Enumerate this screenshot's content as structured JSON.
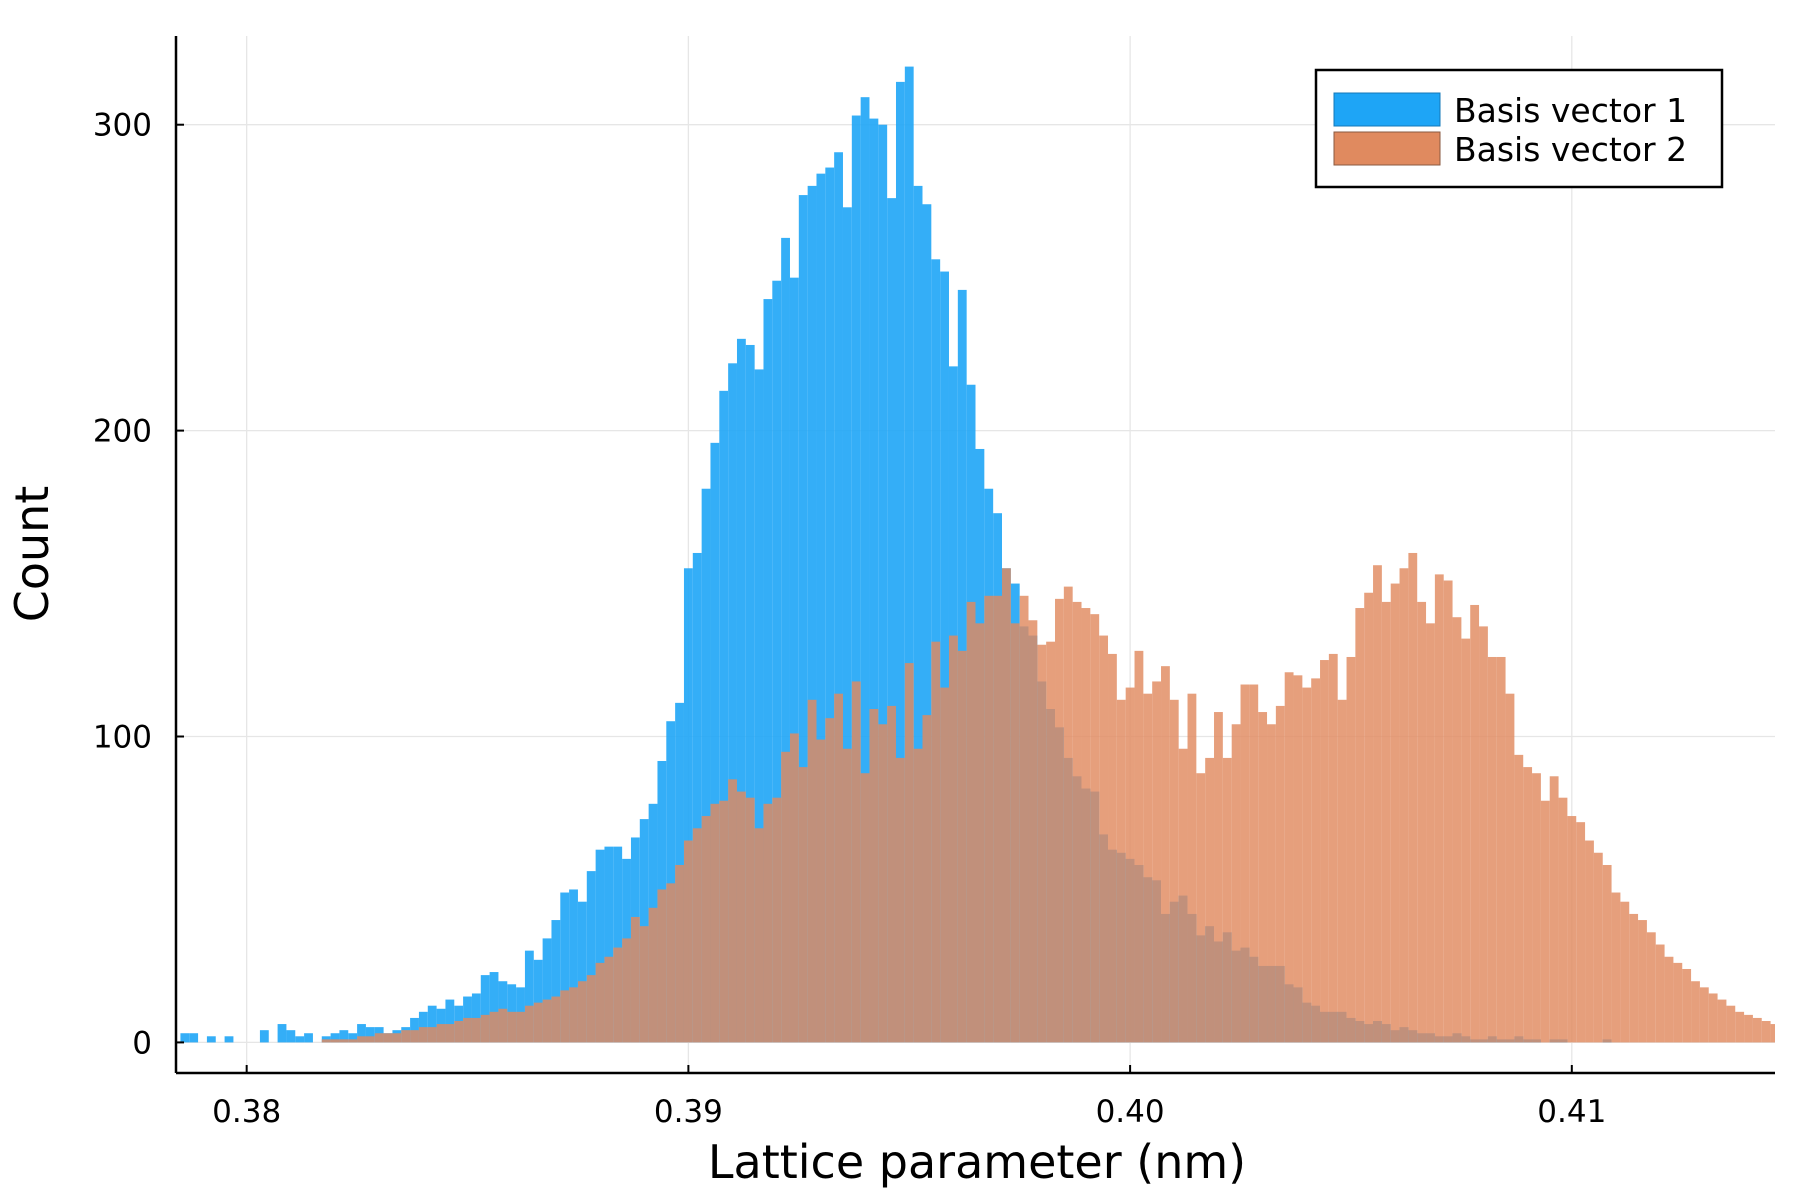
{
  "chart_data": {
    "type": "histogram",
    "title": "",
    "xlabel": "Lattice parameter (nm)",
    "ylabel": "Count",
    "xlim": [
      0.3784,
      0.4146
    ],
    "ylim": [
      -10,
      329
    ],
    "x_ticks": [
      {
        "value": 0.38,
        "label": "0.38"
      },
      {
        "value": 0.39,
        "label": "0.39"
      },
      {
        "value": 0.4,
        "label": "0.40"
      },
      {
        "value": 0.41,
        "label": "0.41"
      }
    ],
    "y_ticks": [
      {
        "value": 0,
        "label": "0"
      },
      {
        "value": 100,
        "label": "100"
      },
      {
        "value": 200,
        "label": "200"
      },
      {
        "value": 300,
        "label": "300"
      }
    ],
    "grid": true,
    "legend_position": "top-right",
    "bin_width": 0.0002,
    "series": [
      {
        "name": "Basis vector 1",
        "color": "#1ea5f6",
        "x_start": 0.3785,
        "counts": [
          3,
          3,
          0,
          2,
          0,
          2,
          0,
          0,
          0,
          4,
          0,
          6,
          4,
          2,
          3,
          0,
          2,
          3,
          4,
          3,
          6,
          5,
          5,
          3,
          4,
          5,
          8,
          10,
          12,
          11,
          14,
          12,
          15,
          16,
          22,
          23,
          20,
          19,
          18,
          30,
          27,
          34,
          40,
          49,
          50,
          46,
          56,
          63,
          64,
          64,
          60,
          67,
          73,
          78,
          92,
          105,
          111,
          155,
          160,
          181,
          196,
          213,
          222,
          230,
          228,
          220,
          243,
          249,
          263,
          250,
          277,
          280,
          284,
          286,
          291,
          273,
          303,
          309,
          302,
          300,
          276,
          314,
          319,
          280,
          274,
          256,
          252,
          221,
          246,
          215,
          194,
          181,
          173,
          155,
          150,
          136,
          133,
          118,
          109,
          103,
          93,
          87,
          83,
          82,
          68,
          63,
          62,
          60,
          58,
          54,
          53,
          42,
          46,
          48,
          42,
          35,
          38,
          33,
          36,
          30,
          31,
          28,
          25,
          25,
          25,
          19,
          18,
          13,
          12,
          10,
          10,
          10,
          8,
          7,
          6,
          7,
          6,
          4,
          5,
          4,
          3,
          3,
          2,
          2,
          3,
          2,
          1,
          1,
          2,
          1,
          1,
          2,
          1,
          1,
          0,
          1,
          1,
          0,
          0,
          0,
          0,
          1,
          0,
          0,
          0,
          0,
          0,
          0,
          0,
          0,
          0,
          0,
          0,
          0,
          0,
          0,
          0,
          0,
          0,
          0,
          0,
          0
        ]
      },
      {
        "name": "Basis vector 2",
        "color": "#e08a5f",
        "x_start": 0.3785,
        "counts": [
          0,
          0,
          0,
          0,
          0,
          0,
          0,
          0,
          0,
          0,
          0,
          0,
          0,
          0,
          0,
          0,
          1,
          1,
          1,
          1,
          2,
          2,
          3,
          3,
          3,
          4,
          4,
          5,
          5,
          6,
          6,
          7,
          8,
          8,
          9,
          10,
          11,
          10,
          10,
          12,
          13,
          14,
          15,
          17,
          18,
          20,
          22,
          26,
          28,
          31,
          34,
          41,
          38,
          44,
          50,
          52,
          58,
          66,
          70,
          74,
          78,
          79,
          86,
          82,
          80,
          70,
          78,
          80,
          95,
          101,
          90,
          112,
          99,
          106,
          114,
          96,
          118,
          88,
          109,
          104,
          110,
          93,
          124,
          96,
          107,
          131,
          116,
          133,
          128,
          144,
          137,
          146,
          146,
          155,
          137,
          146,
          138,
          130,
          131,
          145,
          149,
          144,
          142,
          140,
          133,
          127,
          112,
          116,
          128,
          114,
          118,
          123,
          112,
          96,
          114,
          88,
          93,
          108,
          93,
          104,
          117,
          117,
          108,
          104,
          110,
          121,
          120,
          116,
          119,
          125,
          127,
          112,
          126,
          142,
          147,
          156,
          144,
          150,
          155,
          160,
          144,
          137,
          153,
          151,
          139,
          132,
          143,
          136,
          126,
          126,
          114,
          94,
          90,
          88,
          79,
          87,
          80,
          74,
          72,
          66,
          62,
          58,
          49,
          46,
          42,
          40,
          36,
          32,
          28,
          26,
          24,
          20,
          18,
          16,
          14,
          12,
          10,
          9,
          8,
          7,
          6,
          6,
          5,
          5,
          4,
          3,
          3,
          3,
          2,
          2,
          2,
          2,
          1,
          1,
          1,
          1,
          0
        ]
      }
    ]
  }
}
